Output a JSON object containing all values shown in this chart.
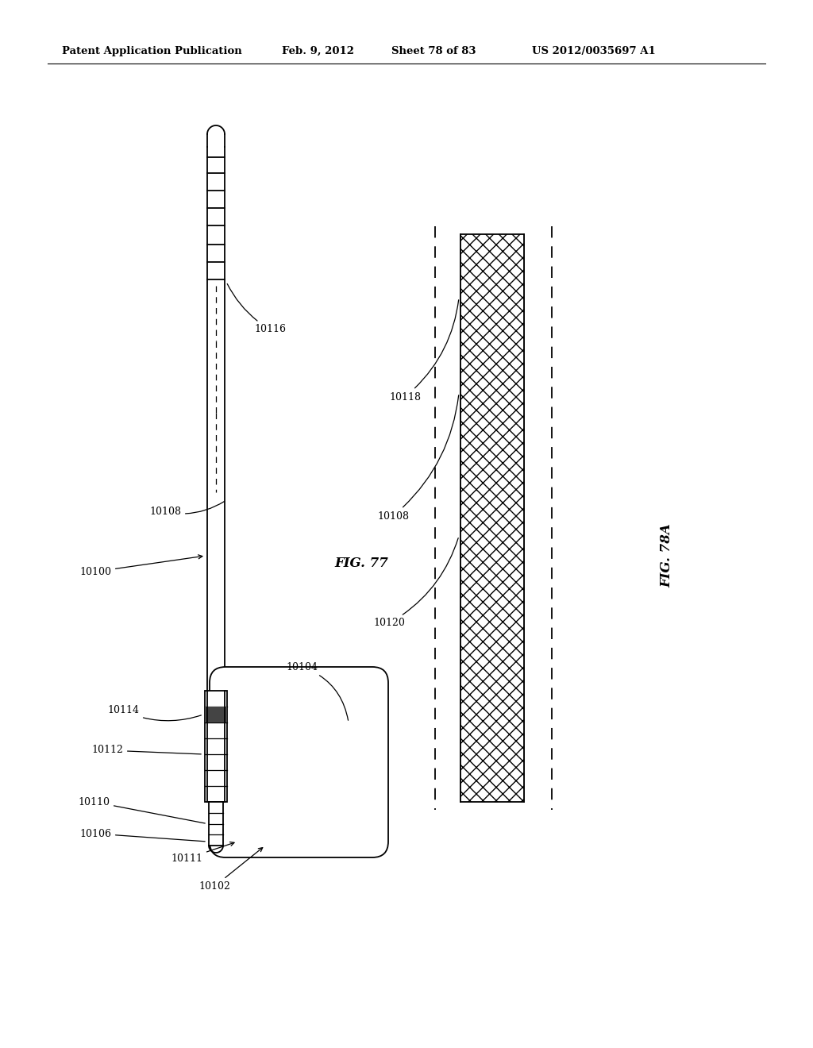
{
  "bg_color": "#ffffff",
  "header_text": "Patent Application Publication",
  "header_date": "Feb. 9, 2012",
  "header_sheet": "Sheet 78 of 83",
  "header_patent": "US 2012/0035697 A1",
  "fig77_label": "FIG. 77",
  "fig78a_label": "FIG. 78A",
  "line_color": "#000000",
  "dark_fill": "#444444",
  "page_width": 10.24,
  "page_height": 13.2
}
